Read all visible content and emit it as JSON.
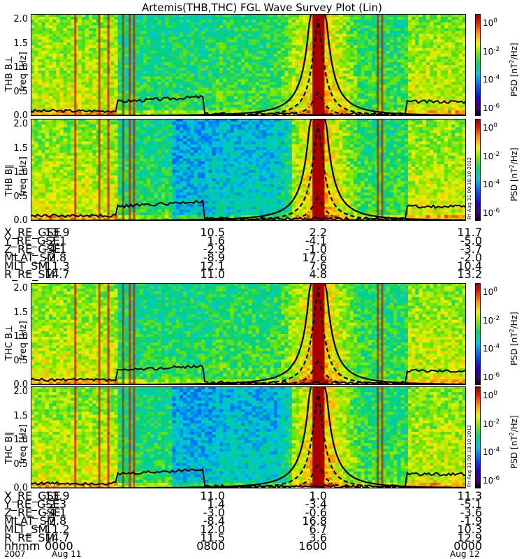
{
  "title": "Artemis(THB,THC) FGL Wave Survey Plot (Lin)",
  "chart_data": [
    {
      "type": "heatmap",
      "probe": "THB",
      "component": "B⊥",
      "ylabel": "freq [Hz]",
      "panel_label": "THB B⊥",
      "yticks": [
        "0.0",
        "0.5",
        "1.0",
        "1.5",
        "2.0"
      ],
      "ylim": [
        0,
        2.0
      ],
      "colorbar": {
        "label": "PSD [nT²/Hz]",
        "ticks": [
          "10^0",
          "10^-2",
          "10^-4",
          "10^-6"
        ],
        "scale": "log"
      }
    },
    {
      "type": "heatmap",
      "probe": "THB",
      "component": "B∥",
      "ylabel": "freq [Hz]",
      "panel_label": "THB B∥",
      "yticks": [
        "0.0",
        "0.5",
        "1.0",
        "1.5",
        "2.0"
      ],
      "ylim": [
        0,
        2.0
      ],
      "colorbar": {
        "label": "PSD [nT²/Hz]",
        "ticks": [
          "10^0",
          "10^-2",
          "10^-4",
          "10^-6"
        ],
        "scale": "log"
      }
    },
    {
      "type": "heatmap",
      "probe": "THC",
      "component": "B⊥",
      "ylabel": "freq [Hz]",
      "panel_label": "THC B⊥",
      "yticks": [
        "0.0",
        "0.5",
        "1.0",
        "1.5",
        "2.0"
      ],
      "ylim": [
        0,
        2.0
      ],
      "colorbar": {
        "label": "PSD [nT²/Hz]",
        "ticks": [
          "10^0",
          "10^-2",
          "10^-4",
          "10^-6"
        ],
        "scale": "log"
      }
    },
    {
      "type": "heatmap",
      "probe": "THC",
      "component": "B∥",
      "ylabel": "freq [Hz]",
      "panel_label": "THC B∥",
      "yticks": [
        "0.0",
        "0.5",
        "1.0",
        "1.5",
        "2.0"
      ],
      "ylim": [
        0,
        2.0
      ],
      "colorbar": {
        "label": "PSD [nT²/Hz]",
        "ticks": [
          "10^0",
          "10^-2",
          "10^-4",
          "10^-6"
        ],
        "scale": "log"
      }
    }
  ],
  "stamp": "Fri Aug 31 00:18:10 2012",
  "ephem_thb": {
    "rows": [
      {
        "name": "X_RE_GSE",
        "v": [
          "13.9",
          "10.5",
          "2.2",
          "11.7"
        ]
      },
      {
        "name": "Y_RE_GSE",
        "v": [
          "-2.1",
          "1.6",
          "-4.1",
          "-5.0"
        ]
      },
      {
        "name": "Z_RE_GSE",
        "v": [
          "-4.1",
          "-2.9",
          "-1.0",
          "-3.7"
        ]
      },
      {
        "name": "MLAT_SM",
        "v": [
          "-2.8",
          "-8.9",
          "17.6",
          "-2.0"
        ]
      },
      {
        "name": "MLT_SM",
        "v": [
          "11.3",
          "12.1",
          "7.6",
          "10.4"
        ]
      },
      {
        "name": "R_RE_SM",
        "v": [
          "14.7",
          "11.0",
          "4.8",
          "13.2"
        ]
      }
    ]
  },
  "ephem_thc": {
    "rows": [
      {
        "name": "X_RE_GSE",
        "v": [
          "13.9",
          "11.0",
          "1.0",
          "11.3"
        ]
      },
      {
        "name": "Y_RE_GSE",
        "v": [
          "-2.3",
          "1.4",
          "-3.4",
          "-5.1"
        ]
      },
      {
        "name": "Z_RE_GSE",
        "v": [
          "-4.1",
          "-3.0",
          "-0.6",
          "-3.6"
        ]
      },
      {
        "name": "MLAT_SM",
        "v": [
          "-2.8",
          "-8.4",
          "16.8",
          "-1.9"
        ]
      },
      {
        "name": "MLT_SM",
        "v": [
          "11.2",
          "12.0",
          "6.7",
          "10.3"
        ]
      },
      {
        "name": "R_RE_SM",
        "v": [
          "14.7",
          "11.5",
          "3.6",
          "12.9"
        ]
      },
      {
        "name": "hhmm",
        "v": [
          "0000",
          "0800",
          "1600",
          "0000"
        ]
      }
    ]
  },
  "date_row": {
    "year": "2007",
    "start": "Aug 11",
    "end": "Aug 12"
  }
}
